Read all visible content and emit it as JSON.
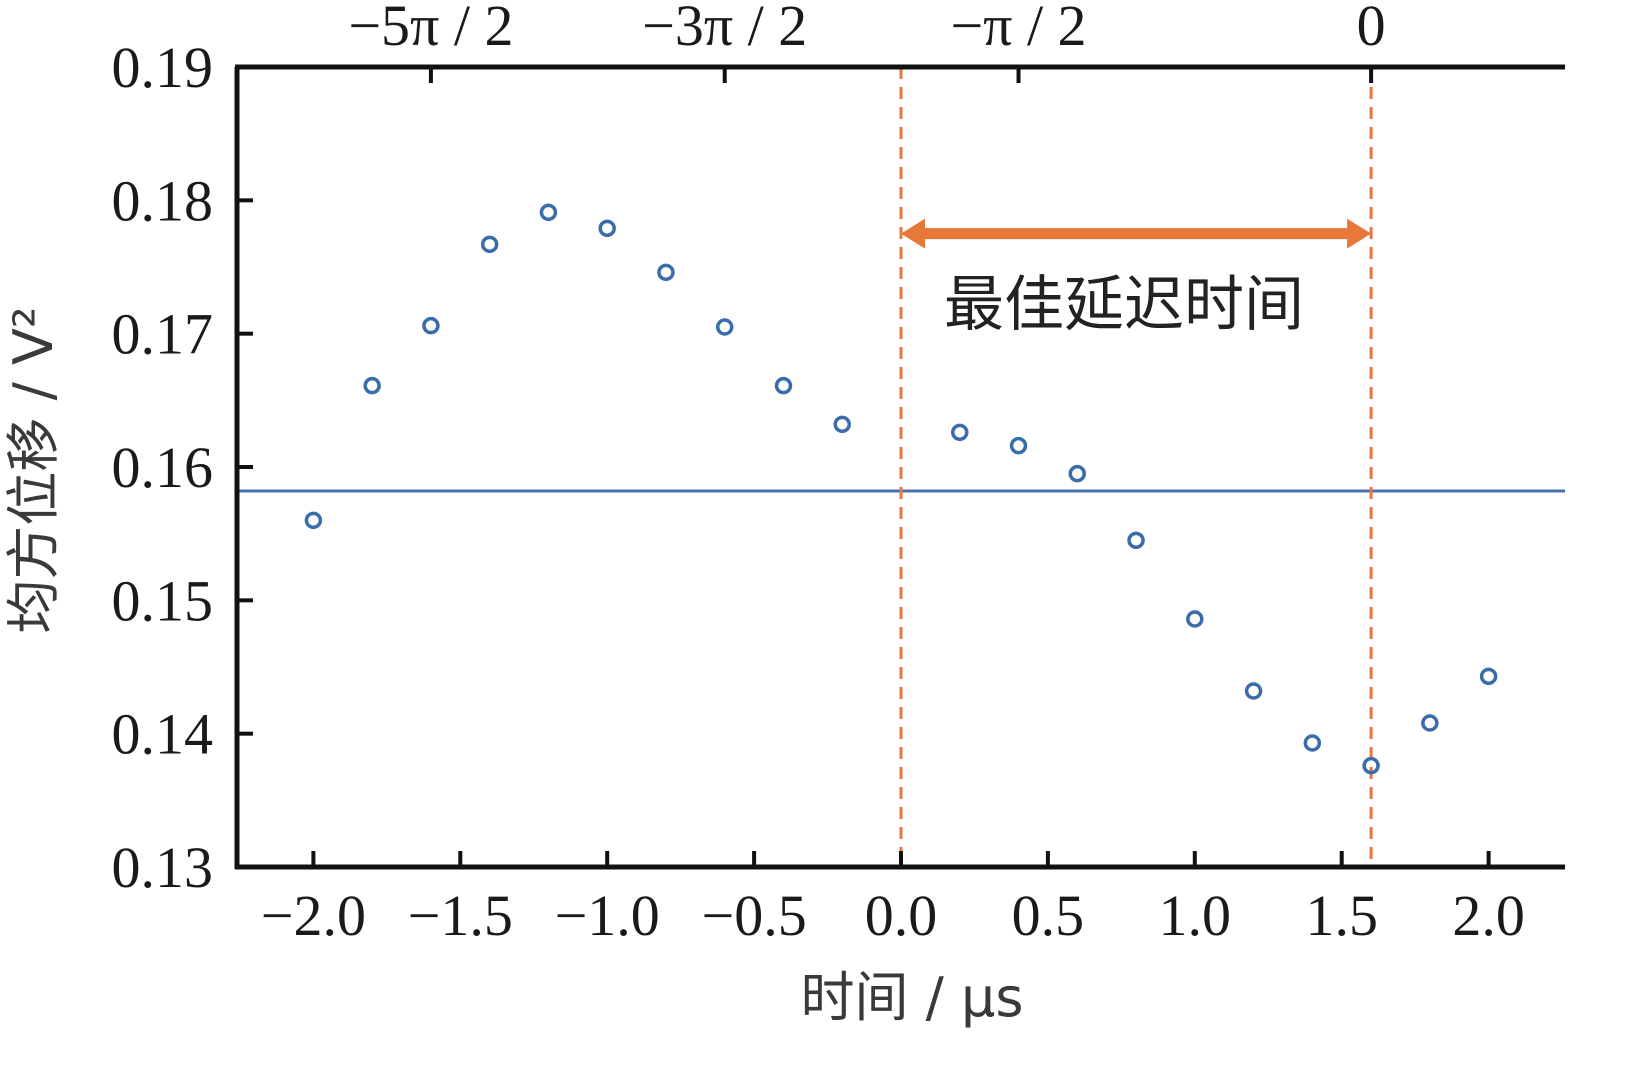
{
  "chart_data": {
    "type": "scatter",
    "title": "",
    "xlabel": "时间 / μs",
    "ylabel": "均方位移 / V²",
    "xlim": [
      -2.26,
      2.26
    ],
    "ylim": [
      0.13,
      0.19
    ],
    "x_ticks": [
      -2.0,
      -1.5,
      -1.0,
      -0.5,
      0.0,
      0.5,
      1.0,
      1.5,
      2.0
    ],
    "x_tick_labels": [
      "−2.0",
      "−1.5",
      "−1.0",
      "−0.5",
      "0.0",
      "0.5",
      "1.0",
      "1.5",
      "2.0"
    ],
    "y_ticks": [
      0.13,
      0.14,
      0.15,
      0.16,
      0.17,
      0.18,
      0.19
    ],
    "y_tick_labels": [
      "0.13",
      "0.14",
      "0.15",
      "0.16",
      "0.17",
      "0.18",
      "0.19"
    ],
    "top_axis": {
      "ticks": [
        -1.6,
        -0.6,
        0.4,
        1.6
      ],
      "labels": [
        "−5π / 2",
        "−3π / 2",
        "−π / 2",
        "0"
      ]
    },
    "series": [
      {
        "x": [
          -2.0,
          -1.8,
          -1.6,
          -1.4,
          -1.2,
          -1.0,
          -0.8,
          -0.6,
          -0.4,
          -0.2,
          0.2,
          0.4,
          0.6,
          0.8,
          1.0,
          1.2,
          1.4,
          1.6,
          1.8,
          2.0
        ],
        "y": [
          0.156,
          0.1661,
          0.1706,
          0.1767,
          0.1791,
          0.1779,
          0.1746,
          0.1705,
          0.1661,
          0.1632,
          0.1626,
          0.1616,
          0.1595,
          0.1545,
          0.1486,
          0.1432,
          0.1393,
          0.1376,
          0.1408,
          0.1443
        ]
      }
    ],
    "reference_line_y": 0.1582,
    "vlines_x": [
      0.0,
      1.6
    ],
    "annotation": {
      "text": "最佳延迟时间",
      "arrow_from_x": 0.0,
      "arrow_to_x": 1.6,
      "arrow_y": 0.1775,
      "text_y": 0.1723
    },
    "colors": {
      "points": "#3b6cab",
      "reference_line": "#4a72b0",
      "markers": "#e8773a",
      "axis": "#111111"
    },
    "grid": false,
    "legend": "none"
  }
}
